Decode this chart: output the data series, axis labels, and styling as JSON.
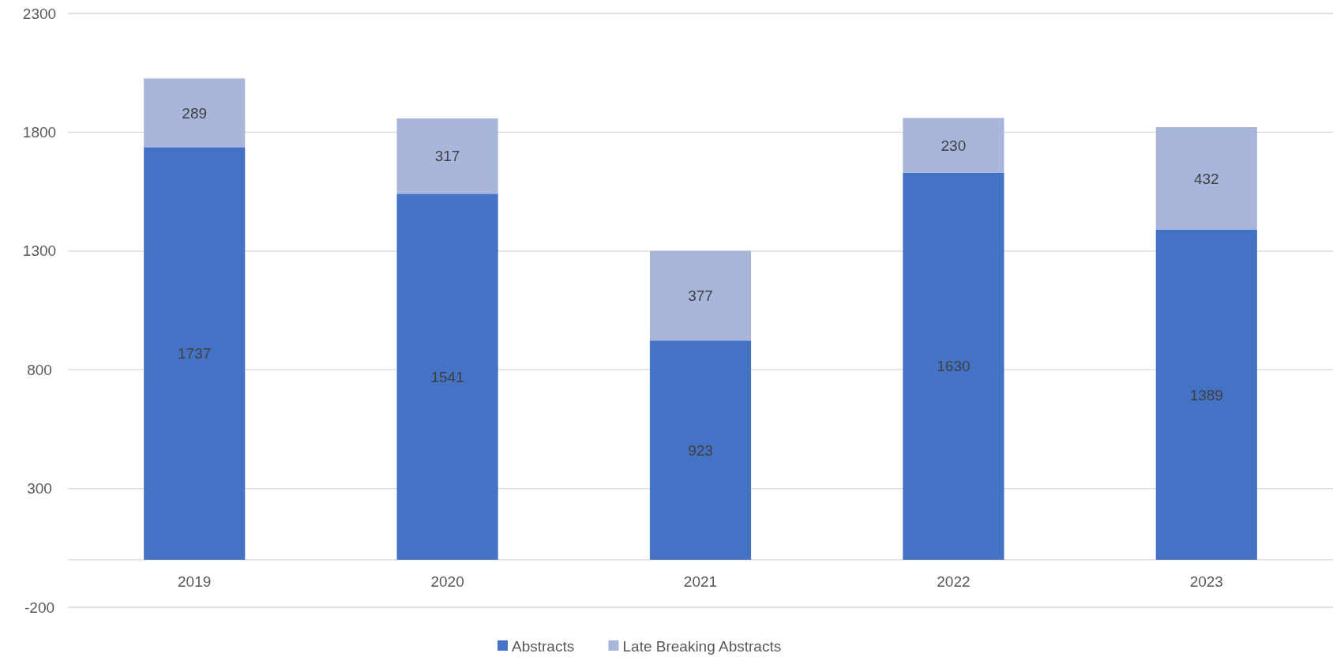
{
  "chart_data": {
    "type": "bar",
    "stacked": true,
    "categories": [
      "2019",
      "2020",
      "2021",
      "2022",
      "2023"
    ],
    "series": [
      {
        "name": "Abstracts",
        "color": "#4472c4",
        "values": [
          1737,
          1541,
          923,
          1630,
          1389
        ]
      },
      {
        "name": "Late Breaking Abstracts",
        "color": "#a9b6dc",
        "values": [
          289,
          317,
          377,
          230,
          432
        ]
      }
    ],
    "ylim": [
      -200,
      2300
    ],
    "yticks": [
      -200,
      300,
      800,
      1300,
      1800,
      2300
    ],
    "grid": "y",
    "legend": "bottom",
    "data_labels": true
  }
}
